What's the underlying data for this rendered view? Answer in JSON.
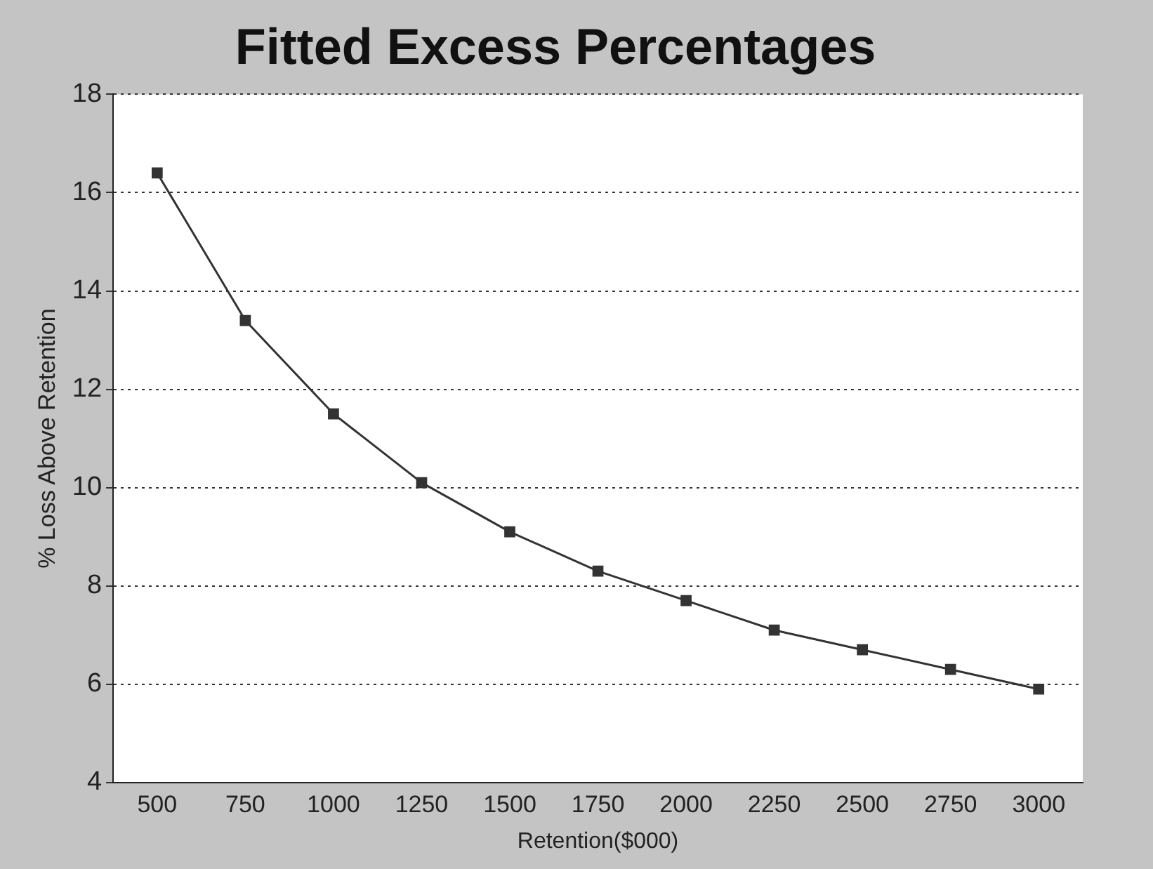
{
  "chart_data": {
    "type": "line",
    "title": "Fitted Excess Percentages",
    "xlabel": "Retention($000)",
    "ylabel": "% Loss Above Retention",
    "categories": [
      "500",
      "750",
      "1000",
      "1250",
      "1500",
      "1750",
      "2000",
      "2250",
      "2500",
      "2750",
      "3000"
    ],
    "series": [
      {
        "color": "#333333",
        "values": [
          16.4,
          13.4,
          11.5,
          10.1,
          9.1,
          8.3,
          7.7,
          7.1,
          6.7,
          6.3,
          5.9
        ]
      }
    ],
    "ylim": [
      4,
      18
    ],
    "yticks": [
      4,
      6,
      8,
      10,
      12,
      14,
      16,
      18
    ],
    "grid": "y",
    "marker": "square",
    "line_style": "solid",
    "legend": false
  }
}
